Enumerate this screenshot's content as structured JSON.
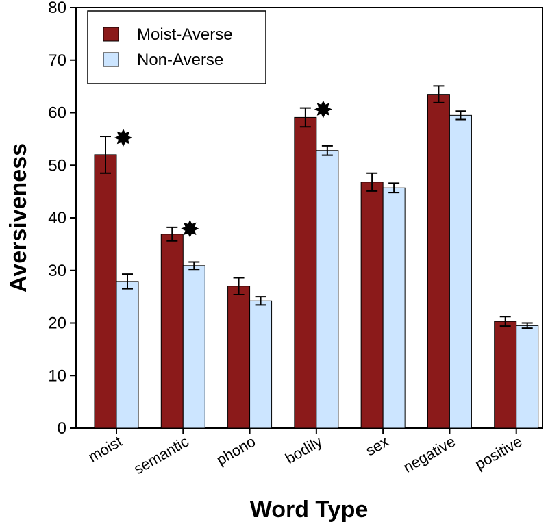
{
  "chart_data": {
    "type": "bar",
    "title": "",
    "xlabel": "Word Type",
    "ylabel": "Aversiveness",
    "ylim": [
      0,
      80
    ],
    "yticks": [
      0,
      10,
      20,
      30,
      40,
      50,
      60,
      70,
      80
    ],
    "categories": [
      "moist",
      "semantic",
      "phono",
      "bodily",
      "sex",
      "negative",
      "positive"
    ],
    "series": [
      {
        "name": "Moist-Averse",
        "color": "#8B1A1A",
        "values": [
          52.0,
          36.9,
          27.0,
          59.1,
          46.8,
          63.5,
          20.3
        ],
        "error": [
          3.5,
          1.3,
          1.6,
          1.8,
          1.7,
          1.6,
          0.9
        ]
      },
      {
        "name": "Non-Averse",
        "color": "#CCE5FF",
        "values": [
          27.9,
          30.9,
          24.2,
          52.8,
          45.7,
          59.5,
          19.5
        ],
        "error": [
          1.4,
          0.7,
          0.8,
          0.9,
          0.9,
          0.8,
          0.5
        ]
      }
    ],
    "significance_markers": [
      "moist",
      "semantic",
      "bodily"
    ],
    "legend_position": "top-left",
    "grid": false
  }
}
